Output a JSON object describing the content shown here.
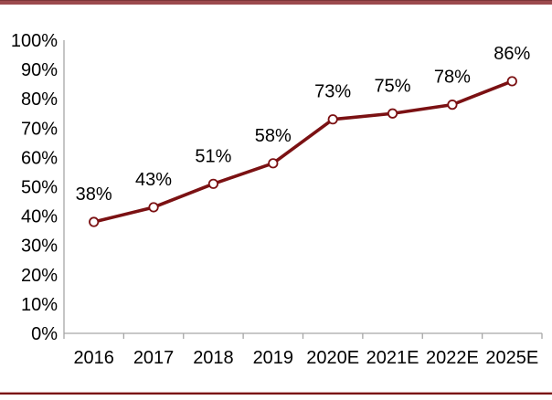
{
  "page": {
    "background": "#FFFFFF",
    "top_bar_color": "#9C4A4E",
    "bottom_rule_color": "#7A0D0F"
  },
  "chart_data": {
    "type": "line",
    "title": "",
    "xlabel": "",
    "ylabel": "",
    "categories": [
      "2016",
      "2017",
      "2018",
      "2019",
      "2020E",
      "2021E",
      "2022E",
      "2025E"
    ],
    "series": [
      {
        "name": "share-percent",
        "values": [
          38,
          43,
          51,
          58,
          73,
          75,
          78,
          86
        ],
        "data_labels": [
          "38%",
          "43%",
          "51%",
          "58%",
          "73%",
          "75%",
          "78%",
          "86%"
        ]
      }
    ],
    "ylim": [
      0,
      100
    ],
    "y_tick_step": 10,
    "y_tick_labels": [
      "0%",
      "10%",
      "20%",
      "30%",
      "40%",
      "50%",
      "60%",
      "70%",
      "80%",
      "90%",
      "100%"
    ],
    "grid": false,
    "legend": false,
    "marker": "circle-open",
    "colors": {
      "series_line": "#7B1113",
      "marker_fill": "#FFFFFF",
      "marker_stroke": "#7B1113",
      "axis_line": "#A6A6A6",
      "tick_mark": "#A6A6A6",
      "label_text": "#000000"
    }
  }
}
